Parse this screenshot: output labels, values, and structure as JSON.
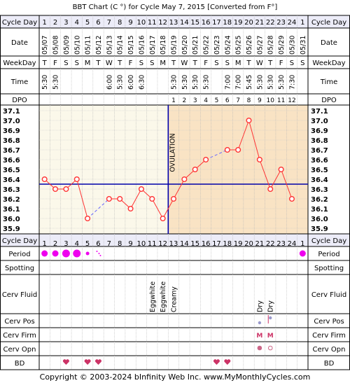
{
  "title": "BBT Chart (C °) for Cycle May 7, 2015  [Converted from F°]",
  "footer": "Copyright © 2003-2024 bInfinity Web Inc.    www.MyMonthlyCycles.com",
  "row_labels": {
    "cycle_day": "Cycle Day",
    "date": "Date",
    "weekday": "WeekDay",
    "time": "Time",
    "dpo": "DPO",
    "period": "Period",
    "spotting": "Spotting",
    "cerv_fluid": "Cerv Fluid",
    "cerv_pos": "Cerv Pos",
    "cerv_firm": "Cerv Firm",
    "cerv_opn": "Cerv Opn",
    "bd": "BD"
  },
  "columns": {
    "cycle_day": [
      "1",
      "2",
      "3",
      "4",
      "5",
      "6",
      "7",
      "8",
      "9",
      "10",
      "11",
      "12",
      "13",
      "14",
      "15",
      "16",
      "17",
      "18",
      "19",
      "20",
      "21",
      "22",
      "23",
      "24",
      "1"
    ],
    "date": [
      "05/07",
      "05/08",
      "05/09",
      "05/10",
      "05/11",
      "05/12",
      "05/13",
      "05/14",
      "05/15",
      "05/16",
      "05/17",
      "05/18",
      "05/19",
      "05/20",
      "05/21",
      "05/22",
      "05/23",
      "05/24",
      "05/25",
      "05/26",
      "05/27",
      "05/28",
      "05/29",
      "05/30",
      "05/31"
    ],
    "weekday": [
      "T",
      "F",
      "S",
      "S",
      "M",
      "T",
      "W",
      "T",
      "F",
      "S",
      "S",
      "M",
      "T",
      "W",
      "T",
      "F",
      "S",
      "S",
      "M",
      "T",
      "W",
      "T",
      "F",
      "S",
      "S"
    ],
    "time": [
      "5:30",
      "5:30",
      "",
      "",
      "",
      "",
      "6:00",
      "5:30",
      "6:00",
      "6:30",
      "",
      "",
      "5:30",
      "5:30",
      "5:30",
      "5:30",
      "",
      "7:00",
      "7:00",
      "5:45",
      "5:30",
      "5:30",
      "5:30",
      "7:30",
      ""
    ],
    "dpo": [
      "",
      "",
      "",
      "",
      "",
      "",
      "",
      "",
      "",
      "",
      "",
      "",
      "1",
      "2",
      "3",
      "4",
      "5",
      "6",
      "7",
      "8",
      "9",
      "10",
      "11",
      "12",
      ""
    ],
    "cerv_fluid": [
      "",
      "",
      "",
      "",
      "",
      "",
      "",
      "",
      "",
      "",
      "Eggwhite",
      "Eggwhite",
      "Creamy",
      "",
      "",
      "",
      "",
      "",
      "",
      "",
      "Dry",
      "Dry",
      "",
      "",
      ""
    ],
    "cerv_firm": [
      "",
      "",
      "",
      "",
      "",
      "",
      "",
      "",
      "",
      "",
      "",
      "",
      "",
      "",
      "",
      "",
      "",
      "",
      "",
      "",
      "M",
      "M",
      "",
      "",
      ""
    ]
  },
  "period": [
    "medium",
    "medium",
    "heavy",
    "heavy",
    "light",
    "spotting",
    "",
    "",
    "",
    "",
    "",
    "",
    "",
    "",
    "",
    "",
    "",
    "",
    "",
    "",
    "",
    "",
    "",
    "",
    "medium"
  ],
  "cerv_pos": [
    "",
    "",
    "",
    "",
    "",
    "",
    "",
    "",
    "",
    "",
    "",
    "",
    "",
    "",
    "",
    "",
    "",
    "",
    "",
    "",
    "low",
    "high",
    "",
    "",
    ""
  ],
  "cerv_opn": [
    "",
    "",
    "",
    "",
    "",
    "",
    "",
    "",
    "",
    "",
    "",
    "",
    "",
    "",
    "",
    "",
    "",
    "",
    "",
    "",
    "closed",
    "open",
    "",
    "",
    ""
  ],
  "bd": [
    false,
    false,
    true,
    false,
    true,
    true,
    false,
    false,
    false,
    false,
    false,
    false,
    false,
    false,
    false,
    false,
    true,
    true,
    false,
    false,
    false,
    false,
    false,
    false,
    false
  ],
  "colors": {
    "ovulation_line": "#0000aa",
    "coverline": "#0000aa",
    "temp_line": "#ff3333",
    "temp_point": "#ff3333",
    "dashed_gap": "#6666ff",
    "pre_bg": "#fbf8ea",
    "post_bg": "#f9e3c4",
    "period": "#ee00ee",
    "heart": "#cc3366",
    "border": "#000000"
  },
  "chart_data": {
    "type": "line",
    "title": "BBT Chart (C °) for Cycle May 7, 2015  [Converted from F°]",
    "x": [
      1,
      2,
      3,
      4,
      5,
      6,
      7,
      8,
      9,
      10,
      11,
      12,
      13,
      14,
      15,
      16,
      17,
      18,
      19,
      20,
      21,
      22,
      23,
      24,
      25
    ],
    "series": [
      {
        "values": [
          36.4,
          36.3,
          36.3,
          36.4,
          36.0,
          null,
          36.2,
          36.2,
          36.1,
          36.3,
          36.2,
          36.0,
          36.2,
          36.4,
          36.5,
          36.6,
          null,
          36.7,
          36.7,
          37.0,
          36.6,
          36.3,
          36.5,
          36.2,
          null
        ]
      }
    ],
    "ylim": [
      35.9,
      37.1
    ],
    "y_ticks": [
      "35.9",
      "36.0",
      "36.1",
      "36.2",
      "36.3",
      "36.4",
      "36.5",
      "36.6",
      "36.7",
      "36.8",
      "36.9",
      "37.0",
      "37.1"
    ],
    "coverline": 36.35,
    "ovulation_day": 12,
    "ovulation_label": "OVULATION",
    "dashed_gaps": [
      [
        5,
        7
      ],
      [
        16,
        18
      ]
    ],
    "grid": true
  }
}
